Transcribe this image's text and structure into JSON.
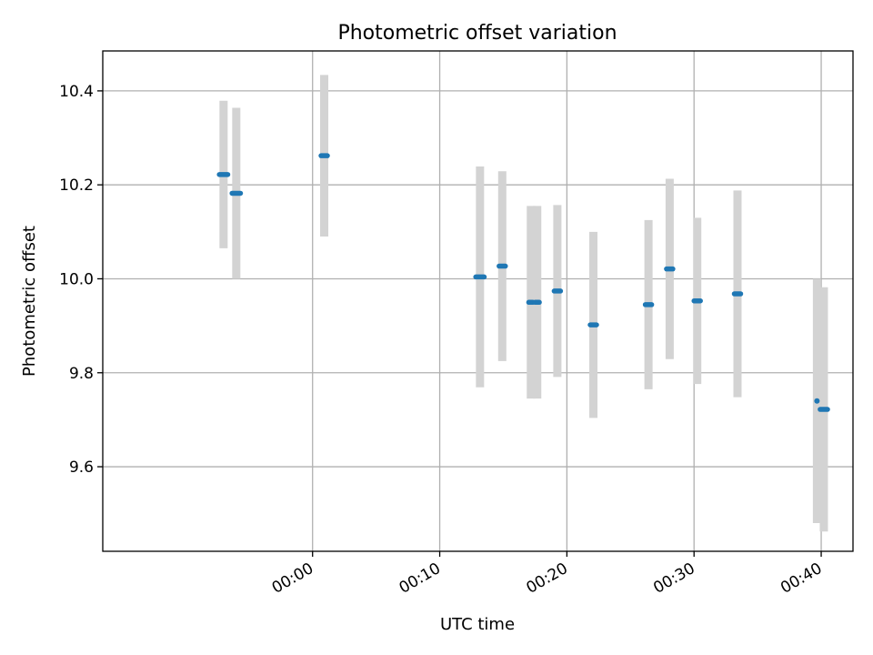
{
  "chart_data": {
    "type": "scatter",
    "title": "Photometric offset variation",
    "xlabel": "UTC time",
    "ylabel": "Photometric offset",
    "x_ticks": [
      "00:00",
      "00:10",
      "00:20",
      "00:30",
      "00:40"
    ],
    "y_ticks": [
      "9.6",
      "9.8",
      "10.0",
      "10.2",
      "10.4"
    ],
    "xlim": [
      "-00:16:30",
      "00:42:30"
    ],
    "ylim": [
      9.42,
      10.485
    ],
    "grid": true,
    "colors": {
      "point": "#1f77b4",
      "errorbar": "#d3d3d3",
      "grid": "#b0b0b0"
    },
    "series": [
      {
        "points": [
          {
            "start": "-00:07:20",
            "end": "-00:06:40",
            "y": 10.222,
            "yerr": 0.157
          },
          {
            "start": "-00:06:20",
            "end": "-00:05:40",
            "y": 10.182,
            "yerr": 0.182
          },
          {
            "start": "00:00:40",
            "end": "00:01:10",
            "y": 10.262,
            "yerr": 0.172
          },
          {
            "start": "00:12:50",
            "end": "00:13:30",
            "y": 10.004,
            "yerr": 0.235
          },
          {
            "start": "00:14:40",
            "end": "00:15:10",
            "y": 10.027,
            "yerr": 0.202
          },
          {
            "start": "00:17:00",
            "end": "00:17:20",
            "y": 9.95,
            "yerr": 0.205
          },
          {
            "start": "00:17:30",
            "end": "00:17:50",
            "y": 9.95,
            "yerr": 0.205
          },
          {
            "start": "00:19:00",
            "end": "00:19:30",
            "y": 9.974,
            "yerr": 0.183
          },
          {
            "start": "00:21:50",
            "end": "00:22:20",
            "y": 9.902,
            "yerr": 0.198
          },
          {
            "start": "00:26:10",
            "end": "00:26:40",
            "y": 9.945,
            "yerr": 0.18
          },
          {
            "start": "00:27:50",
            "end": "00:28:20",
            "y": 10.021,
            "yerr": 0.192
          },
          {
            "start": "00:30:00",
            "end": "00:30:30",
            "y": 9.953,
            "yerr": 0.177
          },
          {
            "start": "00:33:10",
            "end": "00:33:40",
            "y": 9.968,
            "yerr": 0.22
          },
          {
            "start": "00:39:40",
            "end": "00:39:40",
            "y": 9.74,
            "yerr": 0.26
          },
          {
            "start": "00:39:55",
            "end": "00:40:30",
            "y": 9.722,
            "yerr": 0.26
          }
        ]
      }
    ]
  }
}
